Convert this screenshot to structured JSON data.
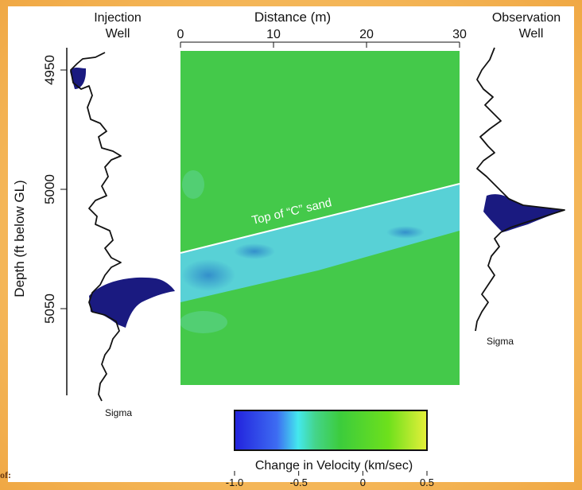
{
  "chart_data": {
    "type": "heatmap",
    "xlabel": "Distance (m)",
    "ylabel": "Depth (ft below GL)",
    "x_ticks": [
      0,
      10,
      20,
      30
    ],
    "xlim": [
      0,
      30
    ],
    "y_ticks": [
      4950,
      5000,
      5050
    ],
    "ylim": [
      4942,
      5082
    ],
    "left_log": {
      "title_line1": "Injection",
      "title_line2": "Well",
      "curve_label": "Sigma"
    },
    "right_log": {
      "title_line1": "Observation",
      "title_line2": "Well",
      "curve_label": "Sigma"
    },
    "annotation": "Top of “C” sand",
    "colorbar": {
      "label": "Change in Velocity (km/sec)",
      "ticks": [
        "-1.0",
        "-0.5",
        "0",
        "0.5"
      ],
      "range": [
        -1.0,
        0.5
      ],
      "colors": [
        "#2626e6",
        "#3a8cf0",
        "#40e6e6",
        "#40d060",
        "#3ad43a",
        "#80e020",
        "#e8f020"
      ]
    },
    "field_color": "#44c94a",
    "anomaly_color": "#5bd2e6",
    "shade_color": "#1a1a80"
  },
  "footer": {
    "corner_text": "of:"
  }
}
